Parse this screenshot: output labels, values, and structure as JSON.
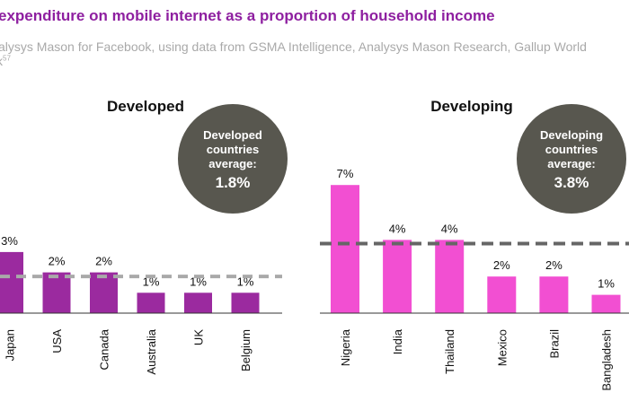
{
  "header": {
    "title": "expenditure on mobile internet as a proportion of household income",
    "source_line1": "alysys Mason for Facebook, using data from GSMA Intelligence, Analysys Mason Research, Gallup World",
    "source_line2": "k",
    "source_ref": "57"
  },
  "colors": {
    "developed": "#9b2a9f",
    "developing": "#f24fd2",
    "average_line": "#a9a9a9",
    "average_line_developing": "#666666",
    "bubble": "#58574f"
  },
  "chart_data": [
    {
      "type": "bar",
      "title": "Developed",
      "categories": [
        "Japan",
        "USA",
        "Canada",
        "Australia",
        "UK",
        "Belgium"
      ],
      "values": [
        3,
        2,
        2,
        1,
        1,
        1
      ],
      "value_labels": [
        "3%",
        "2%",
        "2%",
        "1%",
        "1%",
        "1%"
      ],
      "average": 1.8,
      "average_label": [
        "Developed",
        "countries",
        "average:",
        "1.8%"
      ]
    },
    {
      "type": "bar",
      "title": "Developing",
      "categories": [
        "Nigeria",
        "India",
        "Thailand",
        "Mexico",
        "Brazil",
        "Bangladesh"
      ],
      "values": [
        7,
        4,
        4,
        2,
        2,
        1
      ],
      "value_labels": [
        "7%",
        "4%",
        "4%",
        "2%",
        "2%",
        "1%"
      ],
      "average": 3.8,
      "average_label": [
        "Developing",
        "countries",
        "average:",
        "3.8%"
      ]
    }
  ]
}
